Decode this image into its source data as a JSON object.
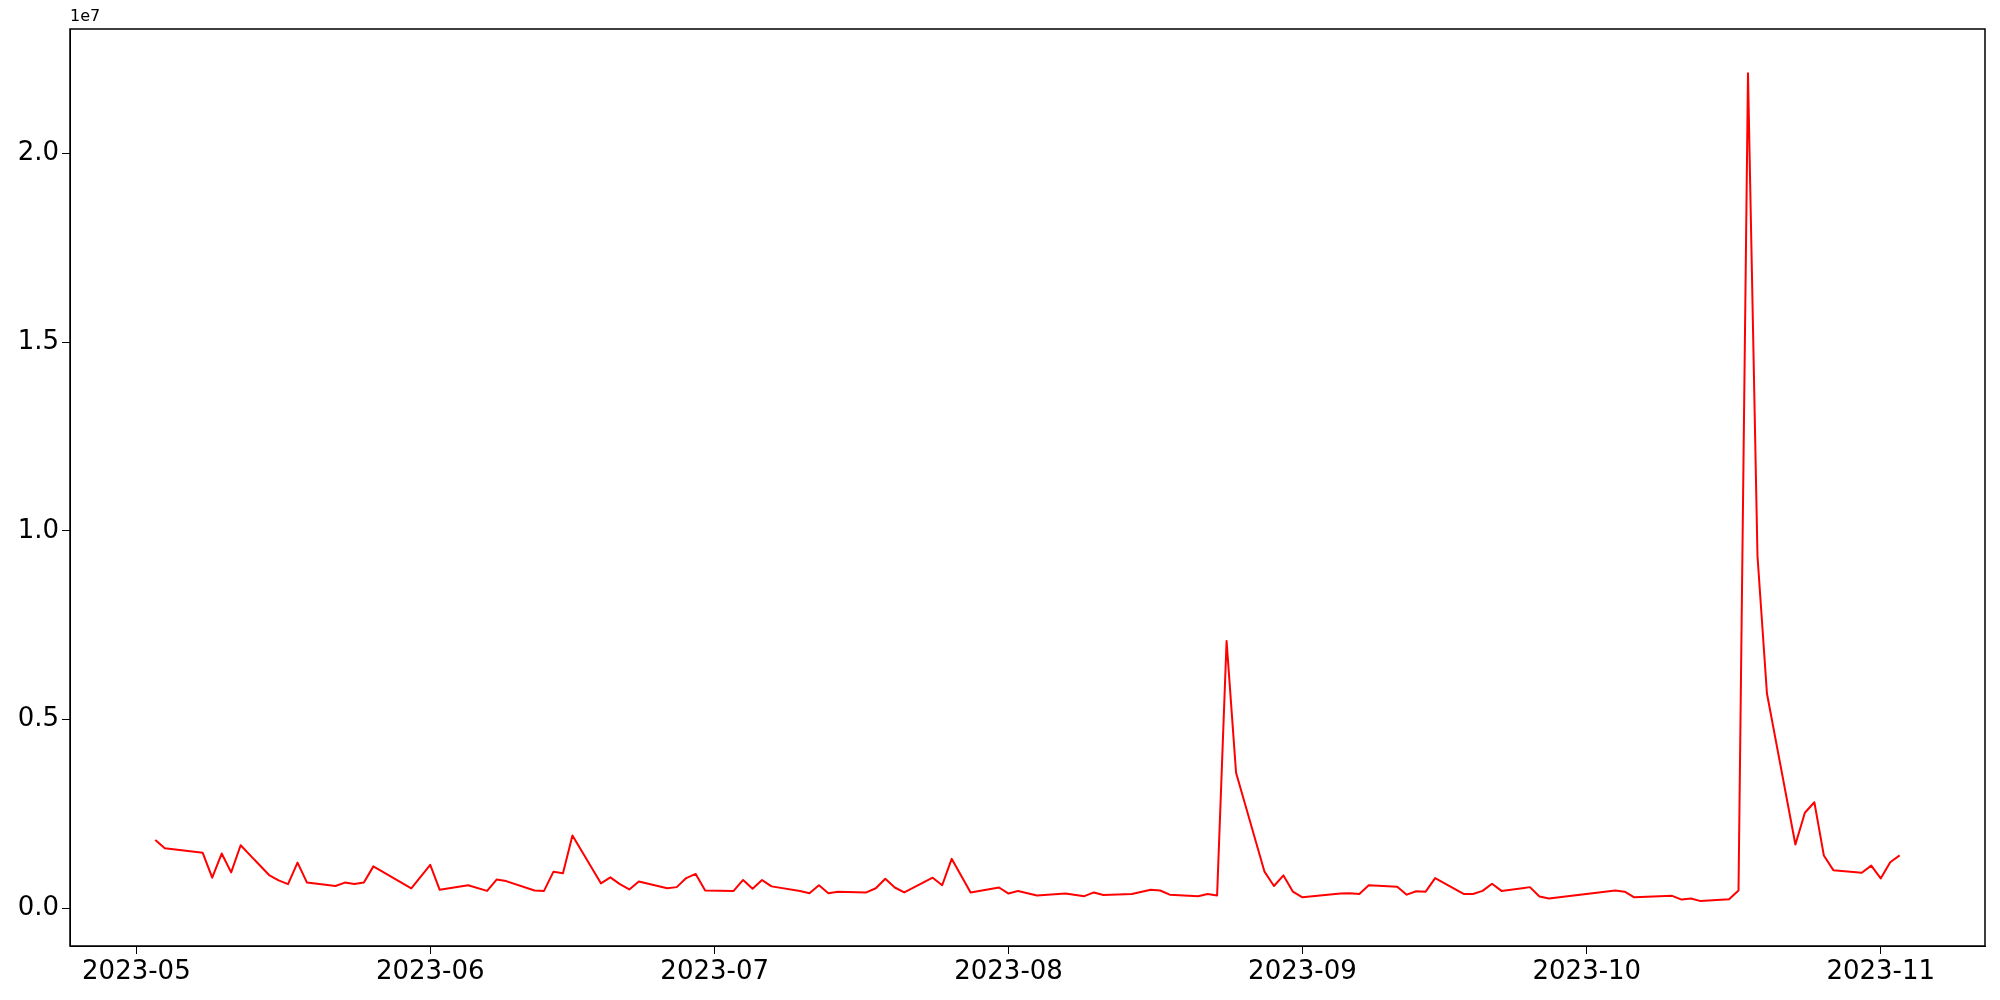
{
  "chart_data": {
    "type": "line",
    "annotations": [
      "1e7"
    ],
    "x": [
      "2023-05-03",
      "2023-05-04",
      "2023-05-08",
      "2023-05-09",
      "2023-05-10",
      "2023-05-11",
      "2023-05-12",
      "2023-05-15",
      "2023-05-16",
      "2023-05-17",
      "2023-05-18",
      "2023-05-19",
      "2023-05-22",
      "2023-05-23",
      "2023-05-24",
      "2023-05-25",
      "2023-05-26",
      "2023-05-30",
      "2023-06-01",
      "2023-06-02",
      "2023-06-05",
      "2023-06-07",
      "2023-06-08",
      "2023-06-09",
      "2023-06-12",
      "2023-06-13",
      "2023-06-14",
      "2023-06-15",
      "2023-06-16",
      "2023-06-19",
      "2023-06-20",
      "2023-06-21",
      "2023-06-22",
      "2023-06-23",
      "2023-06-26",
      "2023-06-27",
      "2023-06-28",
      "2023-06-29",
      "2023-06-30",
      "2023-07-03",
      "2023-07-04",
      "2023-07-05",
      "2023-07-06",
      "2023-07-07",
      "2023-07-10",
      "2023-07-11",
      "2023-07-12",
      "2023-07-13",
      "2023-07-14",
      "2023-07-17",
      "2023-07-18",
      "2023-07-19",
      "2023-07-20",
      "2023-07-21",
      "2023-07-24",
      "2023-07-25",
      "2023-07-26",
      "2023-07-28",
      "2023-07-31",
      "2023-08-01",
      "2023-08-02",
      "2023-08-04",
      "2023-08-07",
      "2023-08-09",
      "2023-08-10",
      "2023-08-11",
      "2023-08-14",
      "2023-08-16",
      "2023-08-17",
      "2023-08-18",
      "2023-08-21",
      "2023-08-22",
      "2023-08-23",
      "2023-08-24",
      "2023-08-25",
      "2023-08-28",
      "2023-08-29",
      "2023-08-30",
      "2023-08-31",
      "2023-09-01",
      "2023-09-05",
      "2023-09-06",
      "2023-09-07",
      "2023-09-08",
      "2023-09-11",
      "2023-09-12",
      "2023-09-13",
      "2023-09-14",
      "2023-09-15",
      "2023-09-18",
      "2023-09-19",
      "2023-09-20",
      "2023-09-21",
      "2023-09-22",
      "2023-09-25",
      "2023-09-26",
      "2023-09-27",
      "2023-10-04",
      "2023-10-05",
      "2023-10-06",
      "2023-10-10",
      "2023-10-11",
      "2023-10-12",
      "2023-10-13",
      "2023-10-16",
      "2023-10-17",
      "2023-10-18",
      "2023-10-19",
      "2023-10-20",
      "2023-10-23",
      "2023-10-24",
      "2023-10-25",
      "2023-10-26",
      "2023-10-27",
      "2023-10-30",
      "2023-10-31",
      "2023-11-01",
      "2023-11-02",
      "2023-11-03"
    ],
    "series": [
      {
        "color": "#ff0000",
        "values": [
          0.181,
          0.159,
          0.147,
          0.081,
          0.145,
          0.095,
          0.167,
          0.088,
          0.074,
          0.064,
          0.121,
          0.068,
          0.059,
          0.068,
          0.064,
          0.068,
          0.111,
          0.053,
          0.115,
          0.049,
          0.061,
          0.046,
          0.076,
          0.072,
          0.047,
          0.046,
          0.097,
          0.093,
          0.193,
          0.066,
          0.082,
          0.064,
          0.05,
          0.071,
          0.053,
          0.056,
          0.08,
          0.091,
          0.047,
          0.046,
          0.075,
          0.052,
          0.075,
          0.058,
          0.046,
          0.04,
          0.061,
          0.04,
          0.044,
          0.042,
          0.053,
          0.078,
          0.055,
          0.042,
          0.081,
          0.061,
          0.131,
          0.042,
          0.055,
          0.039,
          0.046,
          0.034,
          0.039,
          0.032,
          0.042,
          0.035,
          0.038,
          0.049,
          0.047,
          0.036,
          0.032,
          0.038,
          0.034,
          0.708,
          0.359,
          0.097,
          0.059,
          0.087,
          0.044,
          0.029,
          0.039,
          0.04,
          0.038,
          0.061,
          0.057,
          0.036,
          0.045,
          0.044,
          0.08,
          0.038,
          0.038,
          0.046,
          0.065,
          0.046,
          0.056,
          0.031,
          0.026,
          0.047,
          0.044,
          0.029,
          0.033,
          0.023,
          0.026,
          0.019,
          0.024,
          0.047,
          2.213,
          0.934,
          0.569,
          0.169,
          0.253,
          0.281,
          0.14,
          0.101,
          0.094,
          0.113,
          0.079,
          0.122,
          0.14
        ]
      }
    ],
    "xlim": [
      "2023-04-24",
      "2023-11-12"
    ],
    "xticks": [
      "2023-05",
      "2023-06",
      "2023-07",
      "2023-08",
      "2023-09",
      "2023-10",
      "2023-11"
    ],
    "ylim": [
      -0.1,
      2.33
    ],
    "yticks": [
      {
        "value": 0,
        "label": "0.0"
      },
      0.5,
      {
        "value": 1,
        "label": "1.0"
      },
      1.5,
      {
        "value": 2,
        "label": "2.0"
      }
    ],
    "grid": false,
    "legend": false,
    "line_style": "solid",
    "marker": "none"
  }
}
